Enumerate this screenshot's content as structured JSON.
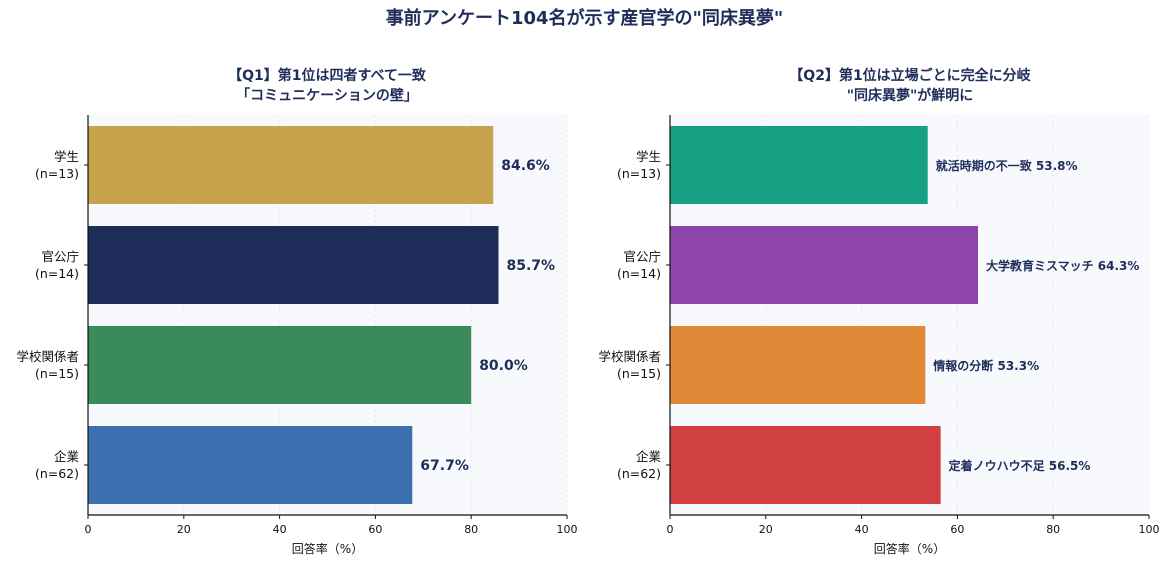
{
  "title": "事前アンケート104名が示す産官学の\"同床異夢\"",
  "colors": {
    "title": "#1f2d5a",
    "plot_background": "#f7f9fc",
    "grid": "#e3e7ee",
    "axis": "#111111"
  },
  "chart_data": [
    {
      "type": "bar",
      "orientation": "horizontal",
      "title_lines": [
        "【Q1】第1位は四者すべて一致",
        "「コミュニケーションの壁」"
      ],
      "categories": [
        "学生",
        "官公庁",
        "学校関係者",
        "企業"
      ],
      "sample_sizes": [
        "(n=13)",
        "(n=14)",
        "(n=15)",
        "(n=62)"
      ],
      "values": [
        84.6,
        85.7,
        80.0,
        67.7
      ],
      "value_labels": [
        "84.6%",
        "85.7%",
        "80.0%",
        "67.7%"
      ],
      "bar_colors": [
        "#c8a34d",
        "#1f2d5a",
        "#3a8a5a",
        "#3c70b0"
      ],
      "xlim": [
        0,
        100
      ],
      "xticks": [
        0,
        20,
        40,
        60,
        80,
        100
      ],
      "xlabel": "回答率（%）",
      "grid": true
    },
    {
      "type": "bar",
      "orientation": "horizontal",
      "title_lines": [
        "【Q2】第1位は立場ごとに完全に分岐",
        "\"同床異夢\"が鮮明に"
      ],
      "categories": [
        "学生",
        "官公庁",
        "学校関係者",
        "企業"
      ],
      "sample_sizes": [
        "(n=13)",
        "(n=14)",
        "(n=15)",
        "(n=62)"
      ],
      "values": [
        53.8,
        64.3,
        53.3,
        56.5
      ],
      "value_labels": [
        "就活時期の不一致  53.8%",
        "大学教育ミスマッチ  64.3%",
        "情報の分断  53.3%",
        "定着ノウハウ不足  56.5%"
      ],
      "bar_colors": [
        "#17a084",
        "#8e44ad",
        "#e08a38",
        "#d04040"
      ],
      "xlim": [
        0,
        100
      ],
      "xticks": [
        0,
        20,
        40,
        60,
        80,
        100
      ],
      "xlabel": "回答率（%）",
      "grid": true
    }
  ]
}
